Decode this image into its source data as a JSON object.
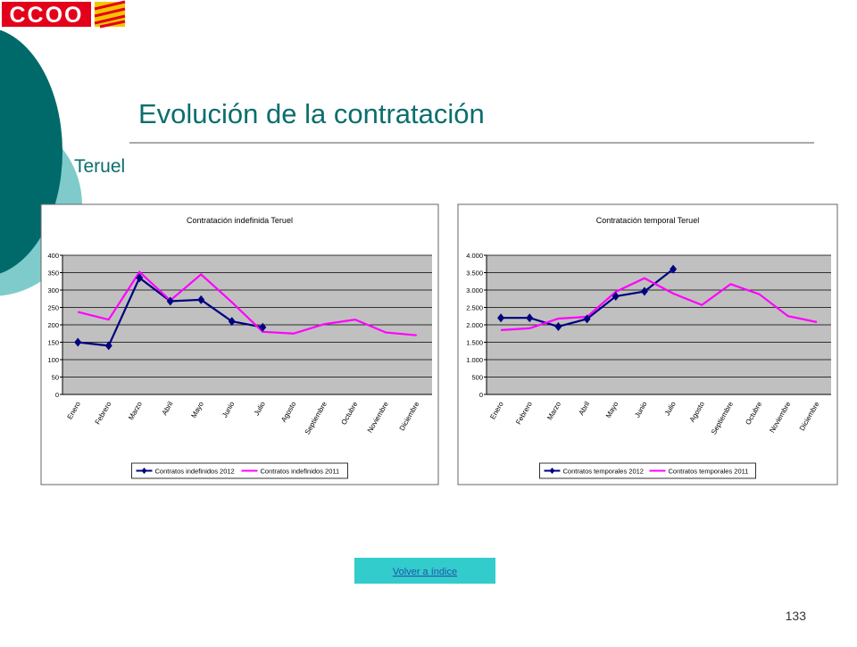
{
  "logo": "CCOO",
  "title": "Evolución de la contratación",
  "subtitle": "Teruel",
  "chart_data": [
    {
      "type": "line",
      "title": "Contratación indefinida Teruel",
      "categories": [
        "Enero",
        "Febrero",
        "Marzo",
        "Abril",
        "Mayo",
        "Junio",
        "Julio",
        "Agosto",
        "Septiembre",
        "Octubre",
        "Noviembre",
        "Diciembre"
      ],
      "series": [
        {
          "name": "Contratos indefinidos 2012",
          "color": "#000080",
          "marker": "diamond",
          "values": [
            150,
            140,
            335,
            268,
            272,
            210,
            193,
            null,
            null,
            null,
            null,
            null
          ]
        },
        {
          "name": "Contratos indefinidos 2011",
          "color": "#ff00ff",
          "values": [
            237,
            215,
            352,
            270,
            345,
            265,
            180,
            175,
            202,
            215,
            178,
            170
          ]
        }
      ],
      "ylim": [
        0,
        400
      ],
      "yticks": [
        0,
        50,
        100,
        150,
        200,
        250,
        300,
        350,
        400
      ],
      "grid": true,
      "legend": "bottom"
    },
    {
      "type": "line",
      "title": "Contratación temporal Teruel",
      "categories": [
        "Enero",
        "Febrero",
        "Marzo",
        "Abril",
        "Mayo",
        "Junio",
        "Julio",
        "Agosto",
        "Septiembre",
        "Octubre",
        "Noviembre",
        "Diciembre"
      ],
      "series": [
        {
          "name": "Contratos temporales 2012",
          "color": "#000080",
          "marker": "diamond",
          "values": [
            2200,
            2200,
            1950,
            2170,
            2820,
            2960,
            3600,
            null,
            null,
            null,
            null,
            null
          ]
        },
        {
          "name": "Contratos temporales 2011",
          "color": "#ff00ff",
          "values": [
            1850,
            1900,
            2180,
            2230,
            2950,
            3340,
            2900,
            2570,
            3170,
            2880,
            2250,
            2080
          ]
        }
      ],
      "ylim": [
        0,
        4000
      ],
      "yticks": [
        0,
        500,
        {
          "value": 1000,
          "label": "1.000"
        },
        {
          "value": 1500,
          "label": "1.500"
        },
        {
          "value": 2000,
          "label": "2.000"
        },
        {
          "value": 2500,
          "label": "2.500"
        },
        {
          "value": 3000,
          "label": "3.000"
        },
        {
          "value": 3500,
          "label": "3.500"
        },
        {
          "value": 4000,
          "label": "4.000"
        }
      ],
      "grid": true,
      "legend": "bottom"
    }
  ],
  "link": "Volver a índice",
  "page_number": "133"
}
